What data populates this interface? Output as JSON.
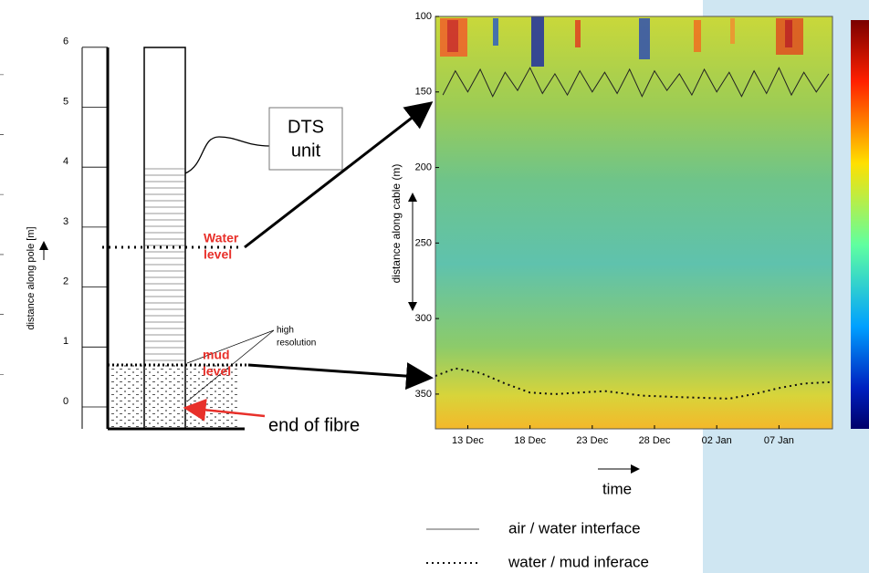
{
  "diagram": {
    "pole_ticks": [
      0,
      1,
      2,
      3,
      4,
      5,
      6
    ],
    "pole_label": "distance along pole [m]",
    "dts_box": [
      "DTS",
      "unit"
    ],
    "water_label": [
      "Water",
      "level"
    ],
    "mud_label": [
      "mud",
      "level"
    ],
    "resolution_label": [
      "high",
      "resolution"
    ],
    "fibre_end": "end of fibre"
  },
  "chart_data": {
    "type": "line",
    "xlabel": "time",
    "ylabel": "distance along cable (m)",
    "xlim": [
      10.4,
      42.3
    ],
    "xticks": [
      {
        "value": 13,
        "label": "13 Dec"
      },
      {
        "value": 18,
        "label": "18 Dec"
      },
      {
        "value": 23,
        "label": "23 Dec"
      },
      {
        "value": 28,
        "label": "28 Dec"
      },
      {
        "value": 33,
        "label": "02 Jan"
      },
      {
        "value": 38,
        "label": "07 Jan"
      }
    ],
    "ylim": [
      373,
      100
    ],
    "yticks": [
      100,
      150,
      200,
      250,
      300,
      350
    ],
    "series": [
      {
        "name": "air / water interface",
        "color": "#222222",
        "style": "solid",
        "x": [
          11,
          12,
          13,
          14,
          15,
          16,
          17,
          18,
          19,
          20,
          21,
          22,
          23,
          24,
          25,
          26,
          27,
          28,
          29,
          30,
          31,
          32,
          33,
          34,
          35,
          36,
          37,
          38,
          39,
          40,
          41,
          42
        ],
        "values": [
          152,
          136,
          150,
          135,
          153,
          137,
          149,
          134,
          151,
          138,
          152,
          136,
          150,
          137,
          151,
          135,
          153,
          136,
          149,
          138,
          152,
          135,
          150,
          137,
          153,
          136,
          151,
          134,
          152,
          137,
          150,
          138
        ]
      },
      {
        "name": "water / mud inferace",
        "color": "#111111",
        "style": "dotted",
        "x": [
          10.4,
          12,
          14,
          16,
          18,
          20,
          24,
          27,
          30,
          34,
          36,
          38,
          40,
          42.3
        ],
        "values": [
          338,
          333,
          336,
          343,
          349,
          350,
          348,
          351,
          352,
          353,
          350,
          346,
          343,
          342
        ]
      }
    ]
  }
}
